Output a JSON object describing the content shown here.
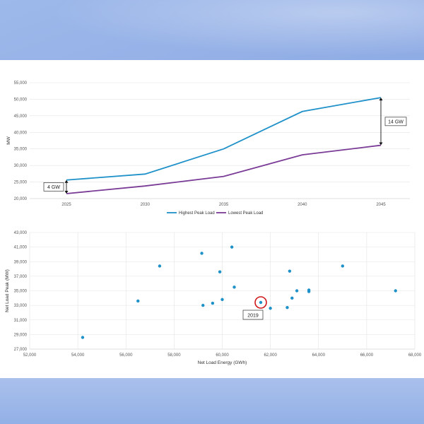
{
  "chart_data": [
    {
      "type": "line",
      "x": [
        2025,
        2030,
        2035,
        2040,
        2045
      ],
      "x_tick_labels": [
        "2025",
        "2030",
        "2035",
        "2040",
        "2045"
      ],
      "series": [
        {
          "name": "Highest Peak Load",
          "color": "#1f91c9",
          "values": [
            25600,
            27400,
            35000,
            46300,
            50500
          ]
        },
        {
          "name": "Lowest Peak Load",
          "color": "#7a3b96",
          "values": [
            21500,
            23800,
            26700,
            33200,
            36100
          ]
        }
      ],
      "ylabel": "MW",
      "ylim": [
        20000,
        55000
      ],
      "y_ticks": [
        20000,
        25000,
        30000,
        35000,
        40000,
        45000,
        50000,
        55000
      ],
      "y_tick_labels": [
        "20,000",
        "25,000",
        "30,000",
        "35,000",
        "40,000",
        "45,000",
        "50,000",
        "55,000"
      ],
      "grid": true,
      "legend_position": "bottom",
      "annotations": [
        {
          "text": "4 GW",
          "x": 2025,
          "y_from": 21500,
          "y_to": 25600
        },
        {
          "text": "14 GW",
          "x": 2045,
          "y_from": 36100,
          "y_to": 50500
        }
      ]
    },
    {
      "type": "scatter",
      "xlabel": "Net Load Energy (GWh)",
      "ylabel": "Net Load Peak (MW)",
      "xlim": [
        52000,
        68000
      ],
      "ylim": [
        27000,
        43000
      ],
      "x_ticks": [
        52000,
        54000,
        56000,
        58000,
        60000,
        62000,
        64000,
        66000,
        68000
      ],
      "x_tick_labels": [
        "52,000",
        "54,000",
        "56,000",
        "58,000",
        "60,000",
        "62,000",
        "64,000",
        "66,000",
        "68,000"
      ],
      "y_ticks": [
        27000,
        29000,
        31000,
        33000,
        35000,
        37000,
        39000,
        41000,
        43000
      ],
      "y_tick_labels": [
        "27,000",
        "29,000",
        "31,000",
        "33,000",
        "35,000",
        "37,000",
        "39,000",
        "41,000",
        "43,000"
      ],
      "grid": true,
      "color": "#1f91c9",
      "points": [
        {
          "x": 54200,
          "y": 28600
        },
        {
          "x": 56500,
          "y": 33600
        },
        {
          "x": 57400,
          "y": 38400
        },
        {
          "x": 59150,
          "y": 40150
        },
        {
          "x": 59200,
          "y": 33000
        },
        {
          "x": 59600,
          "y": 33300
        },
        {
          "x": 59900,
          "y": 37600
        },
        {
          "x": 60000,
          "y": 33800
        },
        {
          "x": 60400,
          "y": 41000
        },
        {
          "x": 60500,
          "y": 35500
        },
        {
          "x": 61600,
          "y": 33400
        },
        {
          "x": 62000,
          "y": 32600
        },
        {
          "x": 62700,
          "y": 32700
        },
        {
          "x": 62800,
          "y": 37700
        },
        {
          "x": 62900,
          "y": 34000
        },
        {
          "x": 63100,
          "y": 35000
        },
        {
          "x": 63600,
          "y": 35100
        },
        {
          "x": 63600,
          "y": 34900
        },
        {
          "x": 65000,
          "y": 38400
        },
        {
          "x": 67200,
          "y": 35000
        }
      ],
      "highlight": {
        "label": "2019",
        "x": 61600,
        "y": 33400,
        "color": "#d0161b"
      }
    }
  ]
}
